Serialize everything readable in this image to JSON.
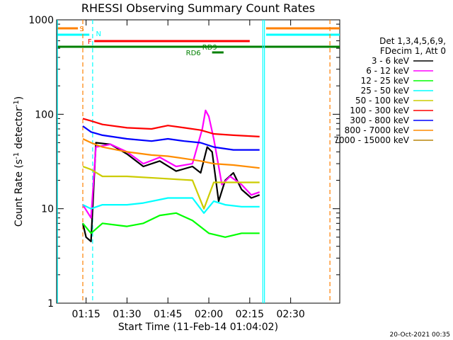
{
  "chart_data": {
    "type": "line",
    "title": "RHESSI Observing Summary Count Rates",
    "xlabel": "Start Time (11-Feb-14 01:04:02)",
    "ylabel_main": "Count Rate (s",
    "ylabel_sup1": "-1",
    "ylabel_mid": " detector",
    "ylabel_sup2": "-1",
    "ylabel_end": ")",
    "yscale": "log",
    "ylim": [
      1,
      1000
    ],
    "xlim_minutes": [
      1.07,
      2.8
    ],
    "x_ticks": [
      {
        "label": "01:15",
        "t": 1.25
      },
      {
        "label": "01:30",
        "t": 1.5
      },
      {
        "label": "01:45",
        "t": 1.75
      },
      {
        "label": "02:00",
        "t": 2.0
      },
      {
        "label": "02:15",
        "t": 2.25
      },
      {
        "label": "02:30",
        "t": 2.5
      }
    ],
    "y_ticks": [
      {
        "label": "1",
        "v": 1
      },
      {
        "label": "10",
        "v": 10
      },
      {
        "label": "100",
        "v": 100
      },
      {
        "label": "1000",
        "v": 1000
      }
    ],
    "legend_header": [
      "Det 1,3,4,5,6,9,",
      "FDecim 1, Att 0"
    ],
    "series": [
      {
        "name": "3 - 6 keV",
        "color": "#000000",
        "pts": [
          [
            1.23,
            7
          ],
          [
            1.25,
            5
          ],
          [
            1.28,
            4.5
          ],
          [
            1.31,
            50
          ],
          [
            1.4,
            48
          ],
          [
            1.5,
            38
          ],
          [
            1.6,
            28
          ],
          [
            1.7,
            32
          ],
          [
            1.8,
            25
          ],
          [
            1.9,
            28
          ],
          [
            1.95,
            24
          ],
          [
            1.99,
            45
          ],
          [
            2.02,
            40
          ],
          [
            2.06,
            12
          ],
          [
            2.1,
            20
          ],
          [
            2.15,
            24
          ],
          [
            2.2,
            16
          ],
          [
            2.26,
            13
          ],
          [
            2.31,
            14
          ]
        ]
      },
      {
        "name": "6 - 12 keV",
        "color": "#ff00ff",
        "pts": [
          [
            1.23,
            11
          ],
          [
            1.28,
            8
          ],
          [
            1.31,
            45
          ],
          [
            1.4,
            48
          ],
          [
            1.5,
            40
          ],
          [
            1.6,
            30
          ],
          [
            1.7,
            35
          ],
          [
            1.8,
            28
          ],
          [
            1.9,
            30
          ],
          [
            1.96,
            70
          ],
          [
            1.98,
            110
          ],
          [
            2.0,
            95
          ],
          [
            2.03,
            55
          ],
          [
            2.08,
            18
          ],
          [
            2.13,
            22
          ],
          [
            2.2,
            18
          ],
          [
            2.26,
            14
          ],
          [
            2.31,
            15
          ]
        ]
      },
      {
        "name": "12 - 25 keV",
        "color": "#00ff00",
        "pts": [
          [
            1.23,
            7
          ],
          [
            1.28,
            5.5
          ],
          [
            1.35,
            7
          ],
          [
            1.5,
            6.5
          ],
          [
            1.6,
            7
          ],
          [
            1.7,
            8.5
          ],
          [
            1.8,
            9
          ],
          [
            1.9,
            7.5
          ],
          [
            2.0,
            5.5
          ],
          [
            2.1,
            5
          ],
          [
            2.2,
            5.5
          ],
          [
            2.31,
            5.5
          ]
        ]
      },
      {
        "name": "25 - 50 keV",
        "color": "#00ffff",
        "pts": [
          [
            1.23,
            11
          ],
          [
            1.28,
            10
          ],
          [
            1.35,
            11
          ],
          [
            1.5,
            11
          ],
          [
            1.6,
            11.5
          ],
          [
            1.75,
            13
          ],
          [
            1.9,
            13
          ],
          [
            1.97,
            9
          ],
          [
            2.03,
            12
          ],
          [
            2.1,
            11
          ],
          [
            2.2,
            10.5
          ],
          [
            2.31,
            10.5
          ]
        ]
      },
      {
        "name": "50 - 100 keV",
        "color": "#cccc00",
        "pts": [
          [
            1.23,
            28
          ],
          [
            1.28,
            26
          ],
          [
            1.35,
            22
          ],
          [
            1.5,
            22
          ],
          [
            1.7,
            21
          ],
          [
            1.9,
            20
          ],
          [
            1.97,
            10
          ],
          [
            2.03,
            19
          ],
          [
            2.15,
            19
          ],
          [
            2.31,
            19
          ]
        ]
      },
      {
        "name": "100 - 300 keV",
        "color": "#ff0000",
        "pts": [
          [
            1.23,
            90
          ],
          [
            1.28,
            85
          ],
          [
            1.35,
            78
          ],
          [
            1.5,
            72
          ],
          [
            1.65,
            70
          ],
          [
            1.75,
            76
          ],
          [
            1.85,
            72
          ],
          [
            1.95,
            68
          ],
          [
            2.03,
            62
          ],
          [
            2.15,
            60
          ],
          [
            2.31,
            58
          ]
        ]
      },
      {
        "name": "300 - 800 keV",
        "color": "#0000ff",
        "pts": [
          [
            1.23,
            75
          ],
          [
            1.28,
            65
          ],
          [
            1.35,
            60
          ],
          [
            1.5,
            55
          ],
          [
            1.65,
            52
          ],
          [
            1.75,
            55
          ],
          [
            1.85,
            52
          ],
          [
            1.95,
            50
          ],
          [
            2.03,
            45
          ],
          [
            2.15,
            42
          ],
          [
            2.31,
            42
          ]
        ]
      },
      {
        "name": "800 - 7000 keV",
        "color": "#ff8c00",
        "pts": [
          [
            1.23,
            55
          ],
          [
            1.28,
            50
          ],
          [
            1.35,
            45
          ],
          [
            1.5,
            40
          ],
          [
            1.65,
            37
          ],
          [
            1.75,
            36
          ],
          [
            1.85,
            34
          ],
          [
            1.95,
            32
          ],
          [
            2.03,
            30
          ],
          [
            2.15,
            29
          ],
          [
            2.31,
            27
          ]
        ]
      },
      {
        "name": "7000 - 15000 keV",
        "color": "#b8860b",
        "pts": []
      }
    ],
    "flags": [
      {
        "label": "S",
        "color": "#ff8000"
      },
      {
        "label": "N",
        "color": "#00ffff"
      },
      {
        "label": "F",
        "color": "#ff0000"
      },
      {
        "label": "RD9",
        "color": "#008000"
      },
      {
        "label": "RD6",
        "color": "#008000"
      }
    ],
    "footer_date": "20-Oct-2021 00:35"
  }
}
